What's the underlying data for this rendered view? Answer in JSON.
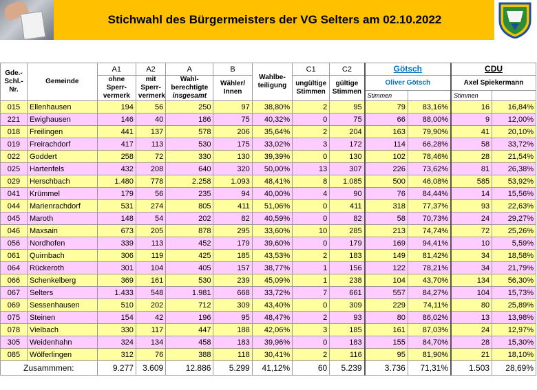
{
  "header": {
    "title": "Stichwahl des Bürgermeisters der VG Selters am 02.10.2022"
  },
  "columns": {
    "code": "Gde.-Schl.-Nr.",
    "gemeinde": "Gemeinde",
    "a1_top": "A1",
    "a1_label": "ohne Sperr-vermerk",
    "a2_top": "A2",
    "a2_label": "mit Sperr-vermerk",
    "a_top": "A",
    "a_label": "Wahl-berechtigte",
    "a_sub": "insgesamt",
    "b_top": "B",
    "b_label": "Wähler/ Innen",
    "wb_label": "Wahlbe-teiligung",
    "c1_top": "C1",
    "c1_label": "ungültige Stimmen",
    "c2_top": "C2",
    "c2_label": "gültige Stimmen",
    "cand1_short": "Götsch",
    "cand1_full": "Oliver Götsch",
    "cand2_short": "CDU",
    "cand2_full": "Axel Spiekermann",
    "stimmen1": "Stimmen",
    "stimmen2": "Stimmen"
  },
  "rows": [
    [
      "015",
      "Ellenhausen",
      "194",
      "56",
      "250",
      "97",
      "38,80%",
      "2",
      "95",
      "79",
      "83,16%",
      "16",
      "16,84%"
    ],
    [
      "221",
      "Ewighausen",
      "146",
      "40",
      "186",
      "75",
      "40,32%",
      "0",
      "75",
      "66",
      "88,00%",
      "9",
      "12,00%"
    ],
    [
      "018",
      "Freilingen",
      "441",
      "137",
      "578",
      "206",
      "35,64%",
      "2",
      "204",
      "163",
      "79,90%",
      "41",
      "20,10%"
    ],
    [
      "019",
      "Freirachdorf",
      "417",
      "113",
      "530",
      "175",
      "33,02%",
      "3",
      "172",
      "114",
      "66,28%",
      "58",
      "33,72%"
    ],
    [
      "022",
      "Goddert",
      "258",
      "72",
      "330",
      "130",
      "39,39%",
      "0",
      "130",
      "102",
      "78,46%",
      "28",
      "21,54%"
    ],
    [
      "025",
      "Hartenfels",
      "432",
      "208",
      "640",
      "320",
      "50,00%",
      "13",
      "307",
      "226",
      "73,62%",
      "81",
      "26,38%"
    ],
    [
      "029",
      "Herschbach",
      "1.480",
      "778",
      "2.258",
      "1.093",
      "48,41%",
      "8",
      "1.085",
      "500",
      "46,08%",
      "585",
      "53,92%"
    ],
    [
      "041",
      "Krümmel",
      "179",
      "56",
      "235",
      "94",
      "40,00%",
      "4",
      "90",
      "76",
      "84,44%",
      "14",
      "15,56%"
    ],
    [
      "044",
      "Marienrachdorf",
      "531",
      "274",
      "805",
      "411",
      "51,06%",
      "0",
      "411",
      "318",
      "77,37%",
      "93",
      "22,63%"
    ],
    [
      "045",
      "Maroth",
      "148",
      "54",
      "202",
      "82",
      "40,59%",
      "0",
      "82",
      "58",
      "70,73%",
      "24",
      "29,27%"
    ],
    [
      "046",
      "Maxsain",
      "673",
      "205",
      "878",
      "295",
      "33,60%",
      "10",
      "285",
      "213",
      "74,74%",
      "72",
      "25,26%"
    ],
    [
      "056",
      "Nordhofen",
      "339",
      "113",
      "452",
      "179",
      "39,60%",
      "0",
      "179",
      "169",
      "94,41%",
      "10",
      "5,59%"
    ],
    [
      "061",
      "Quirnbach",
      "306",
      "119",
      "425",
      "185",
      "43,53%",
      "2",
      "183",
      "149",
      "81,42%",
      "34",
      "18,58%"
    ],
    [
      "064",
      "Rückeroth",
      "301",
      "104",
      "405",
      "157",
      "38,77%",
      "1",
      "156",
      "122",
      "78,21%",
      "34",
      "21,79%"
    ],
    [
      "066",
      "Schenkelberg",
      "369",
      "161",
      "530",
      "239",
      "45,09%",
      "1",
      "238",
      "104",
      "43,70%",
      "134",
      "56,30%"
    ],
    [
      "067",
      "Selters",
      "1.433",
      "548",
      "1.981",
      "668",
      "33,72%",
      "7",
      "661",
      "557",
      "84,27%",
      "104",
      "15,73%"
    ],
    [
      "069",
      "Sessenhausen",
      "510",
      "202",
      "712",
      "309",
      "43,40%",
      "0",
      "309",
      "229",
      "74,11%",
      "80",
      "25,89%"
    ],
    [
      "075",
      "Steinen",
      "154",
      "42",
      "196",
      "95",
      "48,47%",
      "2",
      "93",
      "80",
      "86,02%",
      "13",
      "13,98%"
    ],
    [
      "078",
      "Vielbach",
      "330",
      "117",
      "447",
      "188",
      "42,06%",
      "3",
      "185",
      "161",
      "87,03%",
      "24",
      "12,97%"
    ],
    [
      "305",
      "Weidenhahn",
      "324",
      "134",
      "458",
      "183",
      "39,96%",
      "0",
      "183",
      "155",
      "84,70%",
      "28",
      "15,30%"
    ],
    [
      "085",
      "Wölferlingen",
      "312",
      "76",
      "388",
      "118",
      "30,41%",
      "2",
      "116",
      "95",
      "81,90%",
      "21",
      "18,10%"
    ]
  ],
  "totals": {
    "label": "Zusammmen:",
    "a1": "9.277",
    "a2": "3.609",
    "a": "12.886",
    "b": "5.299",
    "wb": "41,12%",
    "c1": "60",
    "c2": "5.239",
    "g": "3.736",
    "gp": "71,31%",
    "s": "1.503",
    "sp": "28,69%"
  },
  "colors": {
    "banner": "#ffc000",
    "row_yellow": "#ffffa0",
    "row_pink": "#ffccff",
    "accent": "#0070c0"
  },
  "icons": {
    "header_photo": "ballot-photo",
    "crest": "coat-of-arms-icon"
  }
}
